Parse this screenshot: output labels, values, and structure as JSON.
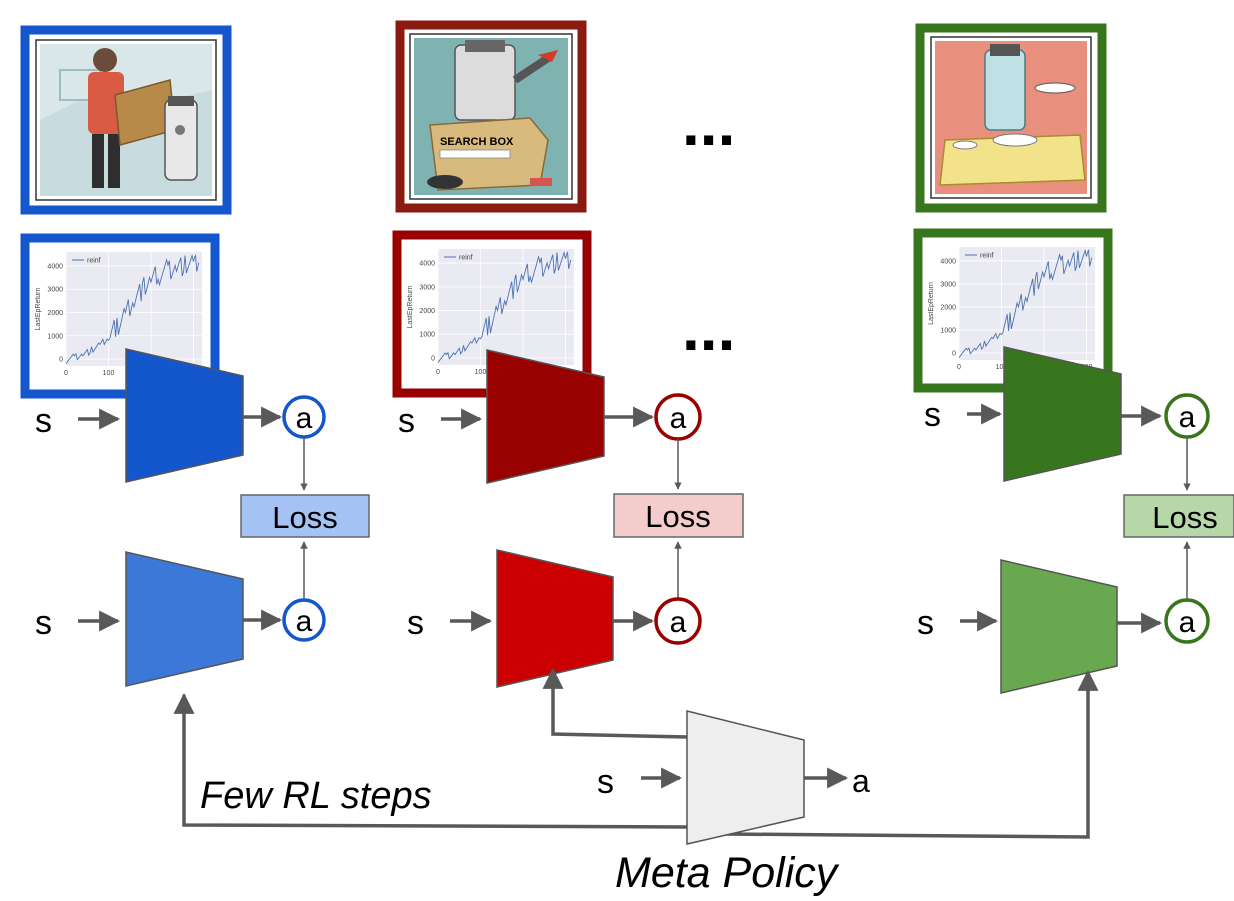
{
  "colors": {
    "blue": "#1456cc",
    "blue_light": "#3b78d8",
    "blue_loss": "#a4c2f4",
    "red": "#990000",
    "red_light": "#cc0000",
    "red_loss": "#f4cccc",
    "green": "#38761d",
    "green_light": "#6aa84f",
    "green_loss": "#b6d7a8",
    "meta": "#eeeeee",
    "arrow": "#595959"
  },
  "labels": {
    "state": "s",
    "action": "a",
    "loss": "Loss",
    "ellipsis": "...",
    "few_rl_steps": "Few RL steps",
    "meta_policy": "Meta Policy"
  },
  "tasks": [
    {
      "name": "blue",
      "picture": "person-robot-carrying-box-illustration"
    },
    {
      "name": "red",
      "picture": "robot-search-box-illustration"
    },
    {
      "name": "green",
      "picture": "robot-serving-dinner-illustration"
    }
  ],
  "chart_data": {
    "type": "line",
    "legend": "reinf",
    "ylabel": "LastEpReturn",
    "xlabel": "Itera",
    "xticks": [
      "0",
      "100",
      "200",
      "300"
    ],
    "yticks": [
      "0",
      "1000",
      "2000",
      "3000",
      "4000"
    ],
    "xlim": [
      0,
      320
    ],
    "ylim": [
      -300,
      4600
    ],
    "x": [
      0,
      20,
      40,
      60,
      80,
      100,
      120,
      140,
      160,
      180,
      200,
      220,
      240,
      260,
      280,
      300,
      315
    ],
    "y": [
      -50,
      80,
      200,
      380,
      600,
      900,
      1400,
      2000,
      2600,
      3000,
      3400,
      3650,
      3850,
      3950,
      4050,
      4100,
      4150
    ]
  }
}
